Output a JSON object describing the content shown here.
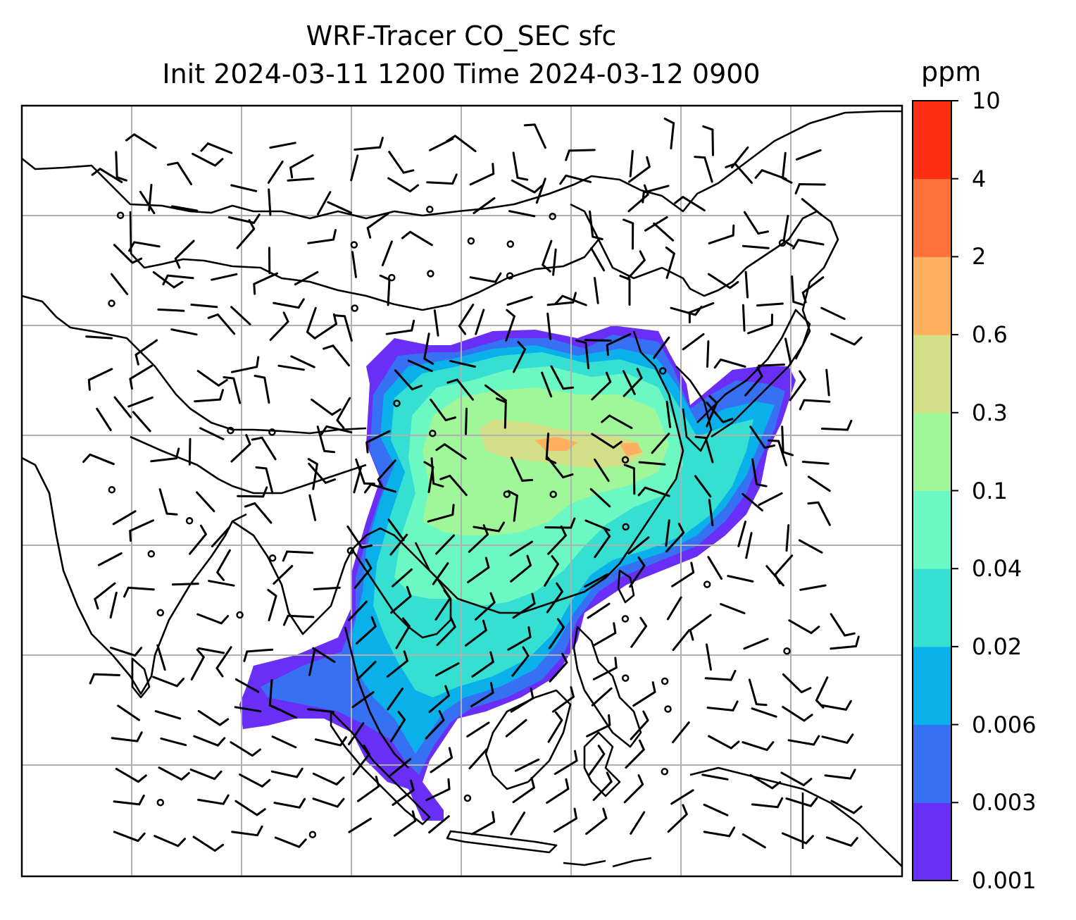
{
  "title": "WRF-Tracer CO_SEC sfc",
  "subtitle": "Init 2024-03-11 1200 Time 2024-03-12 0900",
  "colorbar": {
    "unit": "ppm",
    "levels": [
      "0.001",
      "0.003",
      "0.006",
      "0.02",
      "0.04",
      "0.1",
      "0.3",
      "0.6",
      "2",
      "4",
      "10"
    ],
    "colors": [
      "#6a2ff7",
      "#3571f2",
      "#09b0ea",
      "#35dfd2",
      "#6cf8c2",
      "#9ff79a",
      "#d2df86",
      "#ffb05f",
      "#ff713b",
      "#ff2f16"
    ]
  },
  "map": {
    "field": "CO_SEC surface tracer concentration",
    "gridlines": true,
    "overlay": "wind barbs"
  }
}
